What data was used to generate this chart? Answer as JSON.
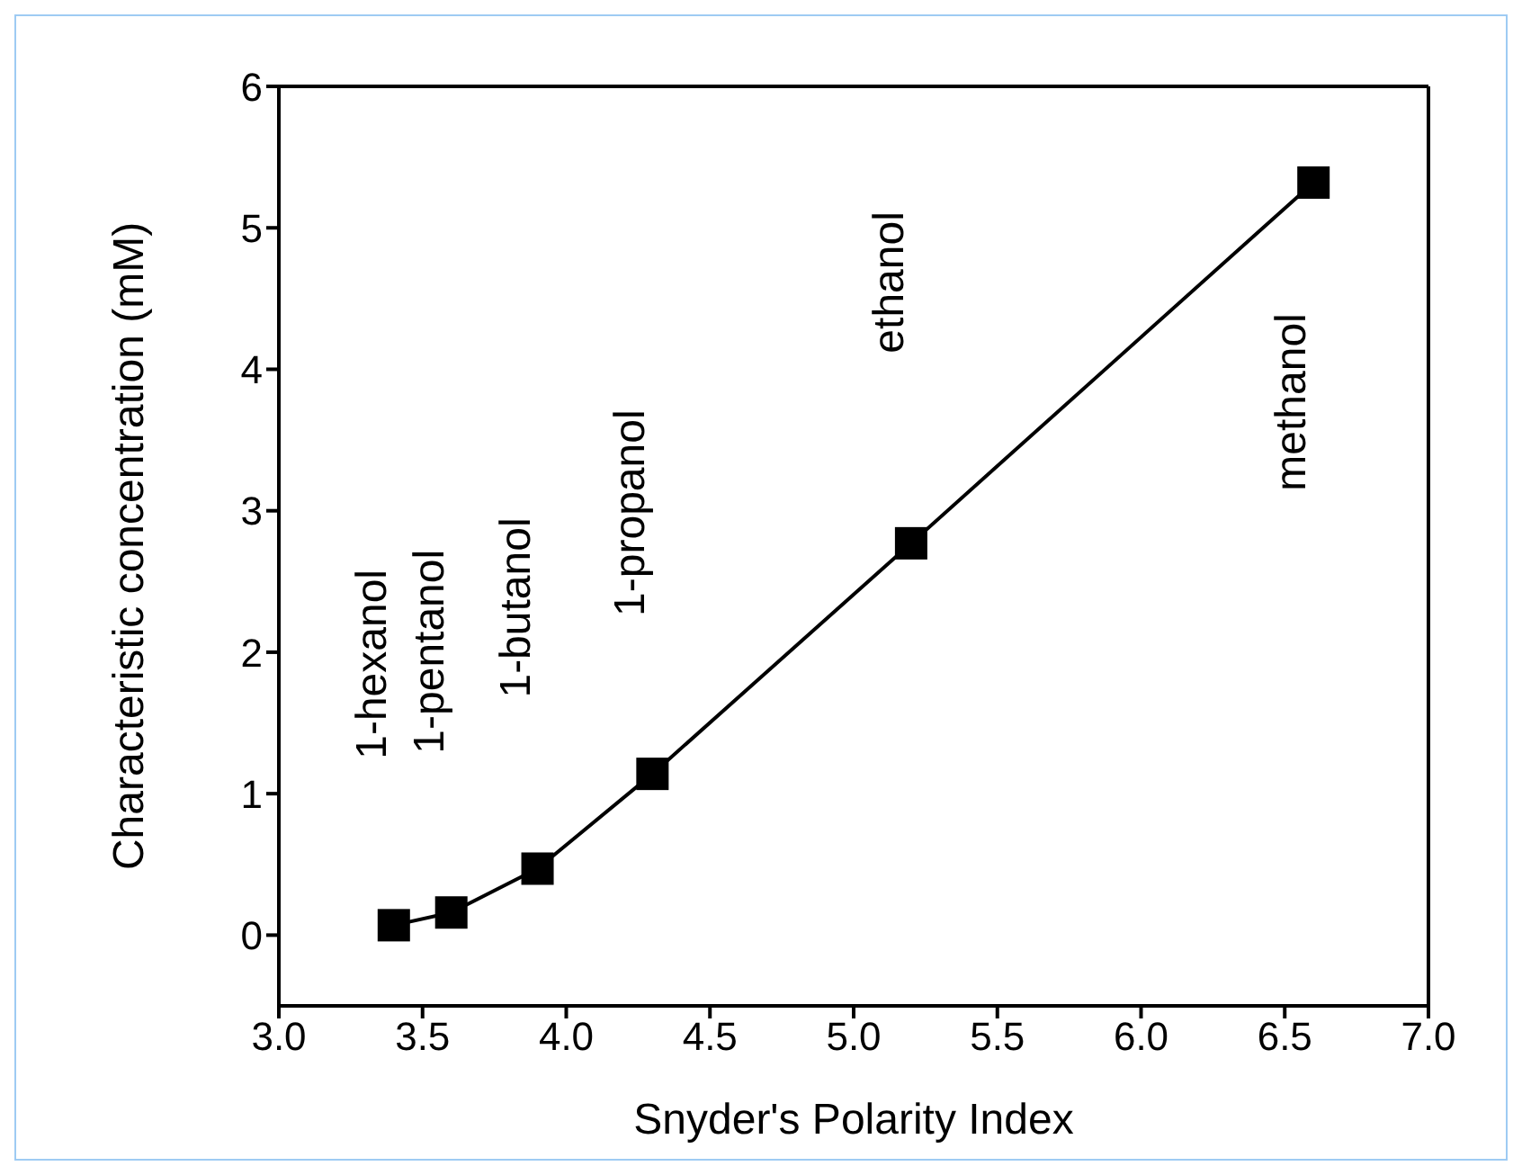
{
  "chart_data": {
    "type": "line",
    "xlabel": "Snyder's Polarity Index",
    "ylabel": "Characteristic concentration (mM)",
    "x": [
      3.4,
      3.6,
      3.9,
      4.3,
      5.2,
      6.6
    ],
    "series": [
      {
        "color": "#000000",
        "values": [
          0.07,
          0.16,
          0.47,
          1.14,
          2.77,
          5.32
        ]
      }
    ],
    "marker": "square",
    "line_style": "solid",
    "grid": false,
    "legend": false,
    "xlim": [
      3.0,
      7.0
    ],
    "xticks": [
      {
        "value": 3.0,
        "label": "3.0"
      },
      {
        "value": 3.5,
        "label": "3.5"
      },
      {
        "value": 4.0,
        "label": "4.0"
      },
      {
        "value": 4.5,
        "label": "4.5"
      },
      {
        "value": 5.0,
        "label": "5.0"
      },
      {
        "value": 5.5,
        "label": "5.5"
      },
      {
        "value": 6.0,
        "label": "6.0"
      },
      {
        "value": 6.5,
        "label": "6.5"
      },
      {
        "value": 7.0,
        "label": "7.0"
      }
    ],
    "ylim": [
      -0.5,
      6
    ],
    "yticks": [
      0,
      1,
      2,
      3,
      4,
      5,
      6
    ],
    "annotations": [
      "1-hexanol",
      "1-pentanol",
      "1-butanol",
      "1-propanol",
      "ethanol",
      "methanol"
    ]
  }
}
